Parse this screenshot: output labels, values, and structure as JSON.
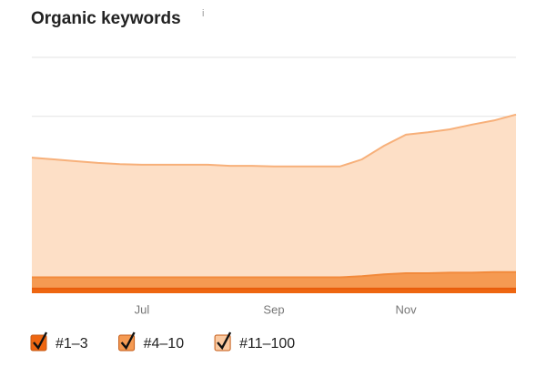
{
  "chart_data": {
    "type": "stacked-area",
    "title": "Organic keywords",
    "info_icon": "i",
    "categories": [
      null,
      null,
      null,
      null,
      null,
      "Jul",
      null,
      null,
      null,
      null,
      null,
      "Sep",
      null,
      null,
      null,
      null,
      null,
      "Nov",
      null,
      null,
      null,
      null,
      null
    ],
    "series": [
      {
        "name": "#1–3",
        "color": "#ee6611",
        "values": [
          0.08,
          0.08,
          0.08,
          0.08,
          0.08,
          0.08,
          0.08,
          0.08,
          0.08,
          0.08,
          0.08,
          0.08,
          0.08,
          0.08,
          0.08,
          0.08,
          0.08,
          0.08,
          0.08,
          0.08,
          0.08,
          0.08,
          0.08
        ]
      },
      {
        "name": "#4–10",
        "color": "#f59a52",
        "values": [
          0.19,
          0.19,
          0.19,
          0.19,
          0.19,
          0.19,
          0.19,
          0.19,
          0.19,
          0.19,
          0.19,
          0.19,
          0.19,
          0.19,
          0.19,
          0.21,
          0.24,
          0.26,
          0.26,
          0.27,
          0.27,
          0.28,
          0.28
        ]
      },
      {
        "name": "#11–100",
        "color": "#fddfc6",
        "values": [
          2.03,
          2.0,
          1.97,
          1.94,
          1.92,
          1.91,
          1.91,
          1.91,
          1.91,
          1.89,
          1.89,
          1.88,
          1.88,
          1.88,
          1.88,
          1.98,
          2.18,
          2.35,
          2.39,
          2.43,
          2.51,
          2.57,
          2.67
        ]
      }
    ],
    "ylim": [
      0,
      4
    ],
    "gridlines": [
      3,
      4
    ],
    "grid": true
  }
}
